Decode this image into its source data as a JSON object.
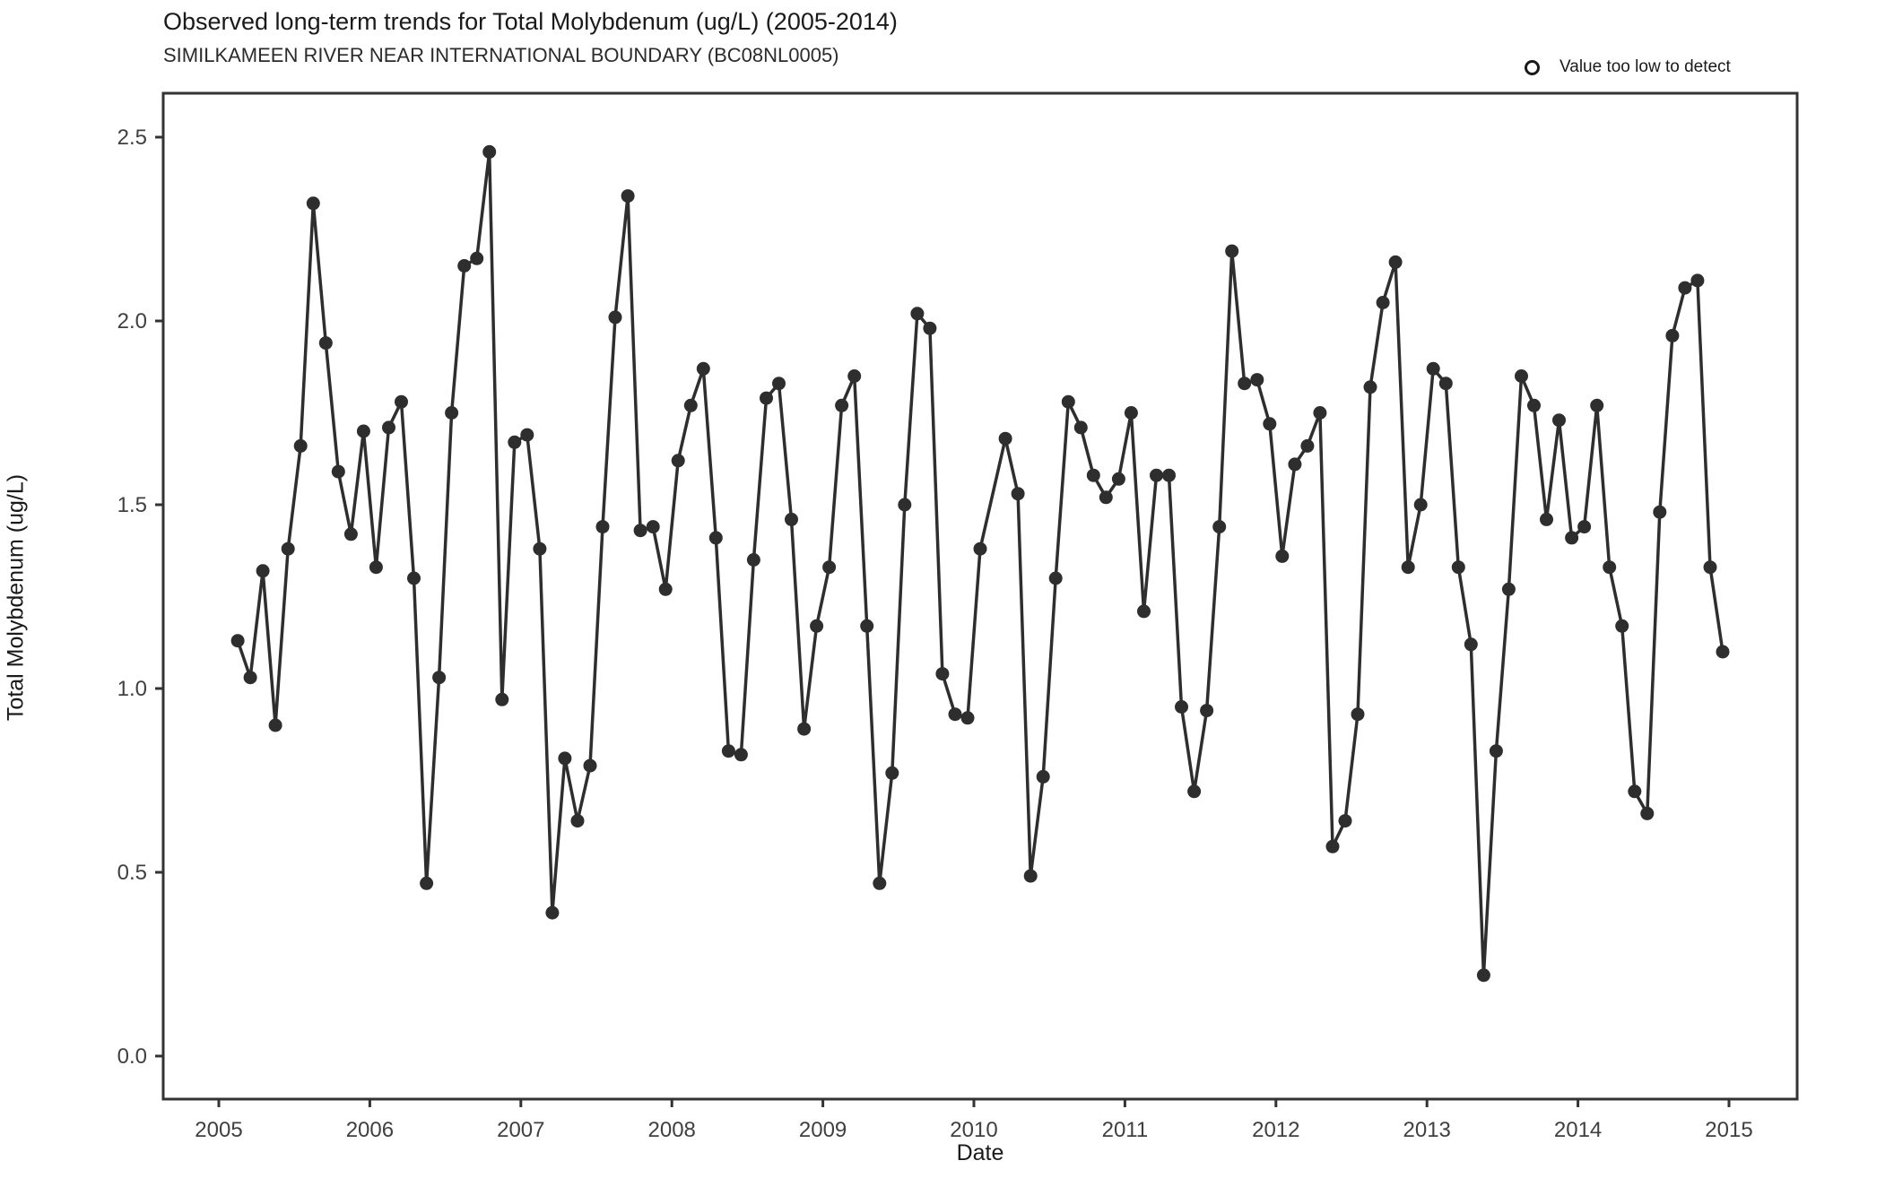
{
  "header": {
    "title": "Observed long-term trends for Total Molybdenum (ug/L) (2005-2014)",
    "subtitle": "SIMILKAMEEN RIVER NEAR INTERNATIONAL BOUNDARY (BC08NL0005)"
  },
  "legend": {
    "symbol": "open-circle",
    "label": "Value too low to detect"
  },
  "colors": {
    "series": "#2e2e2e",
    "axis": "#333333",
    "tick_text": "#404040",
    "background": "#ffffff"
  },
  "chart_data": {
    "type": "line",
    "title": "Observed long-term trends for Total Molybdenum (ug/L) (2005-2014)",
    "subtitle": "SIMILKAMEEN RIVER NEAR INTERNATIONAL BOUNDARY (BC08NL0005)",
    "xlabel": "Date",
    "ylabel": "Total Molybdenum (ug/L)",
    "x_ticks": [
      2005,
      2006,
      2007,
      2008,
      2009,
      2010,
      2011,
      2012,
      2013,
      2014,
      2015
    ],
    "y_ticks": [
      "0.0",
      "0.5",
      "1.0",
      "1.5",
      "2.0",
      "2.5"
    ],
    "ylim": [
      -0.18,
      2.62
    ],
    "xlim": [
      2004.63,
      2015.45
    ],
    "grid": false,
    "legend_position": "top-right",
    "marker": "filled-circle",
    "points": [
      [
        "2005-02",
        1.13
      ],
      [
        "2005-03",
        1.03
      ],
      [
        "2005-04",
        1.32
      ],
      [
        "2005-05",
        0.9
      ],
      [
        "2005-06",
        1.38
      ],
      [
        "2005-07",
        1.66
      ],
      [
        "2005-08",
        2.32
      ],
      [
        "2005-09",
        1.94
      ],
      [
        "2005-10",
        1.59
      ],
      [
        "2005-11",
        1.42
      ],
      [
        "2005-12",
        1.7
      ],
      [
        "2006-01",
        1.33
      ],
      [
        "2006-02",
        1.71
      ],
      [
        "2006-03",
        1.78
      ],
      [
        "2006-04",
        1.3
      ],
      [
        "2006-05",
        0.47
      ],
      [
        "2006-06",
        1.03
      ],
      [
        "2006-07",
        1.75
      ],
      [
        "2006-08",
        2.15
      ],
      [
        "2006-09",
        2.17
      ],
      [
        "2006-10",
        2.46
      ],
      [
        "2006-11",
        0.97
      ],
      [
        "2006-12",
        1.67
      ],
      [
        "2007-01",
        1.69
      ],
      [
        "2007-02",
        1.38
      ],
      [
        "2007-03",
        0.39
      ],
      [
        "2007-04",
        0.81
      ],
      [
        "2007-05",
        0.64
      ],
      [
        "2007-06",
        0.79
      ],
      [
        "2007-07",
        1.44
      ],
      [
        "2007-08",
        2.01
      ],
      [
        "2007-09",
        2.34
      ],
      [
        "2007-10",
        1.43
      ],
      [
        "2007-11",
        1.44
      ],
      [
        "2007-12",
        1.27
      ],
      [
        "2008-01",
        1.62
      ],
      [
        "2008-02",
        1.77
      ],
      [
        "2008-03",
        1.87
      ],
      [
        "2008-04",
        1.41
      ],
      [
        "2008-05",
        0.83
      ],
      [
        "2008-06",
        0.82
      ],
      [
        "2008-07",
        1.35
      ],
      [
        "2008-08",
        1.79
      ],
      [
        "2008-09",
        1.83
      ],
      [
        "2008-10",
        1.46
      ],
      [
        "2008-11",
        0.89
      ],
      [
        "2008-12",
        1.17
      ],
      [
        "2009-01",
        1.33
      ],
      [
        "2009-02",
        1.77
      ],
      [
        "2009-03",
        1.85
      ],
      [
        "2009-04",
        1.17
      ],
      [
        "2009-05",
        0.47
      ],
      [
        "2009-06",
        0.77
      ],
      [
        "2009-07",
        1.5
      ],
      [
        "2009-08",
        2.02
      ],
      [
        "2009-09",
        1.98
      ],
      [
        "2009-10",
        1.04
      ],
      [
        "2009-11",
        0.93
      ],
      [
        "2009-12",
        0.92
      ],
      [
        "2010-01",
        1.38
      ],
      [
        "2010-03",
        1.68
      ],
      [
        "2010-04",
        1.53
      ],
      [
        "2010-05",
        0.49
      ],
      [
        "2010-06",
        0.76
      ],
      [
        "2010-07",
        1.3
      ],
      [
        "2010-08",
        1.78
      ],
      [
        "2010-09",
        1.71
      ],
      [
        "2010-10",
        1.58
      ],
      [
        "2010-11",
        1.52
      ],
      [
        "2010-12",
        1.57
      ],
      [
        "2011-01",
        1.75
      ],
      [
        "2011-02",
        1.21
      ],
      [
        "2011-03",
        1.58
      ],
      [
        "2011-04",
        1.58
      ],
      [
        "2011-05",
        0.95
      ],
      [
        "2011-06",
        0.72
      ],
      [
        "2011-07",
        0.94
      ],
      [
        "2011-08",
        1.44
      ],
      [
        "2011-09",
        2.19
      ],
      [
        "2011-10",
        1.83
      ],
      [
        "2011-11",
        1.84
      ],
      [
        "2011-12",
        1.72
      ],
      [
        "2012-01",
        1.36
      ],
      [
        "2012-02",
        1.61
      ],
      [
        "2012-03",
        1.66
      ],
      [
        "2012-04",
        1.75
      ],
      [
        "2012-05",
        0.57
      ],
      [
        "2012-06",
        0.64
      ],
      [
        "2012-07",
        0.93
      ],
      [
        "2012-08",
        1.82
      ],
      [
        "2012-09",
        2.05
      ],
      [
        "2012-10",
        2.16
      ],
      [
        "2012-11",
        1.33
      ],
      [
        "2012-12",
        1.5
      ],
      [
        "2013-01",
        1.87
      ],
      [
        "2013-02",
        1.83
      ],
      [
        "2013-03",
        1.33
      ],
      [
        "2013-04",
        1.12
      ],
      [
        "2013-05",
        0.22
      ],
      [
        "2013-06",
        0.83
      ],
      [
        "2013-07",
        1.27
      ],
      [
        "2013-08",
        1.85
      ],
      [
        "2013-09",
        1.77
      ],
      [
        "2013-10",
        1.46
      ],
      [
        "2013-11",
        1.73
      ],
      [
        "2013-12",
        1.41
      ],
      [
        "2014-01",
        1.44
      ],
      [
        "2014-02",
        1.77
      ],
      [
        "2014-03",
        1.33
      ],
      [
        "2014-04",
        1.17
      ],
      [
        "2014-05",
        0.72
      ],
      [
        "2014-06",
        0.66
      ],
      [
        "2014-07",
        1.48
      ],
      [
        "2014-08",
        1.96
      ],
      [
        "2014-09",
        2.09
      ],
      [
        "2014-10",
        2.11
      ],
      [
        "2014-11",
        1.33
      ],
      [
        "2014-12",
        1.1
      ]
    ]
  }
}
